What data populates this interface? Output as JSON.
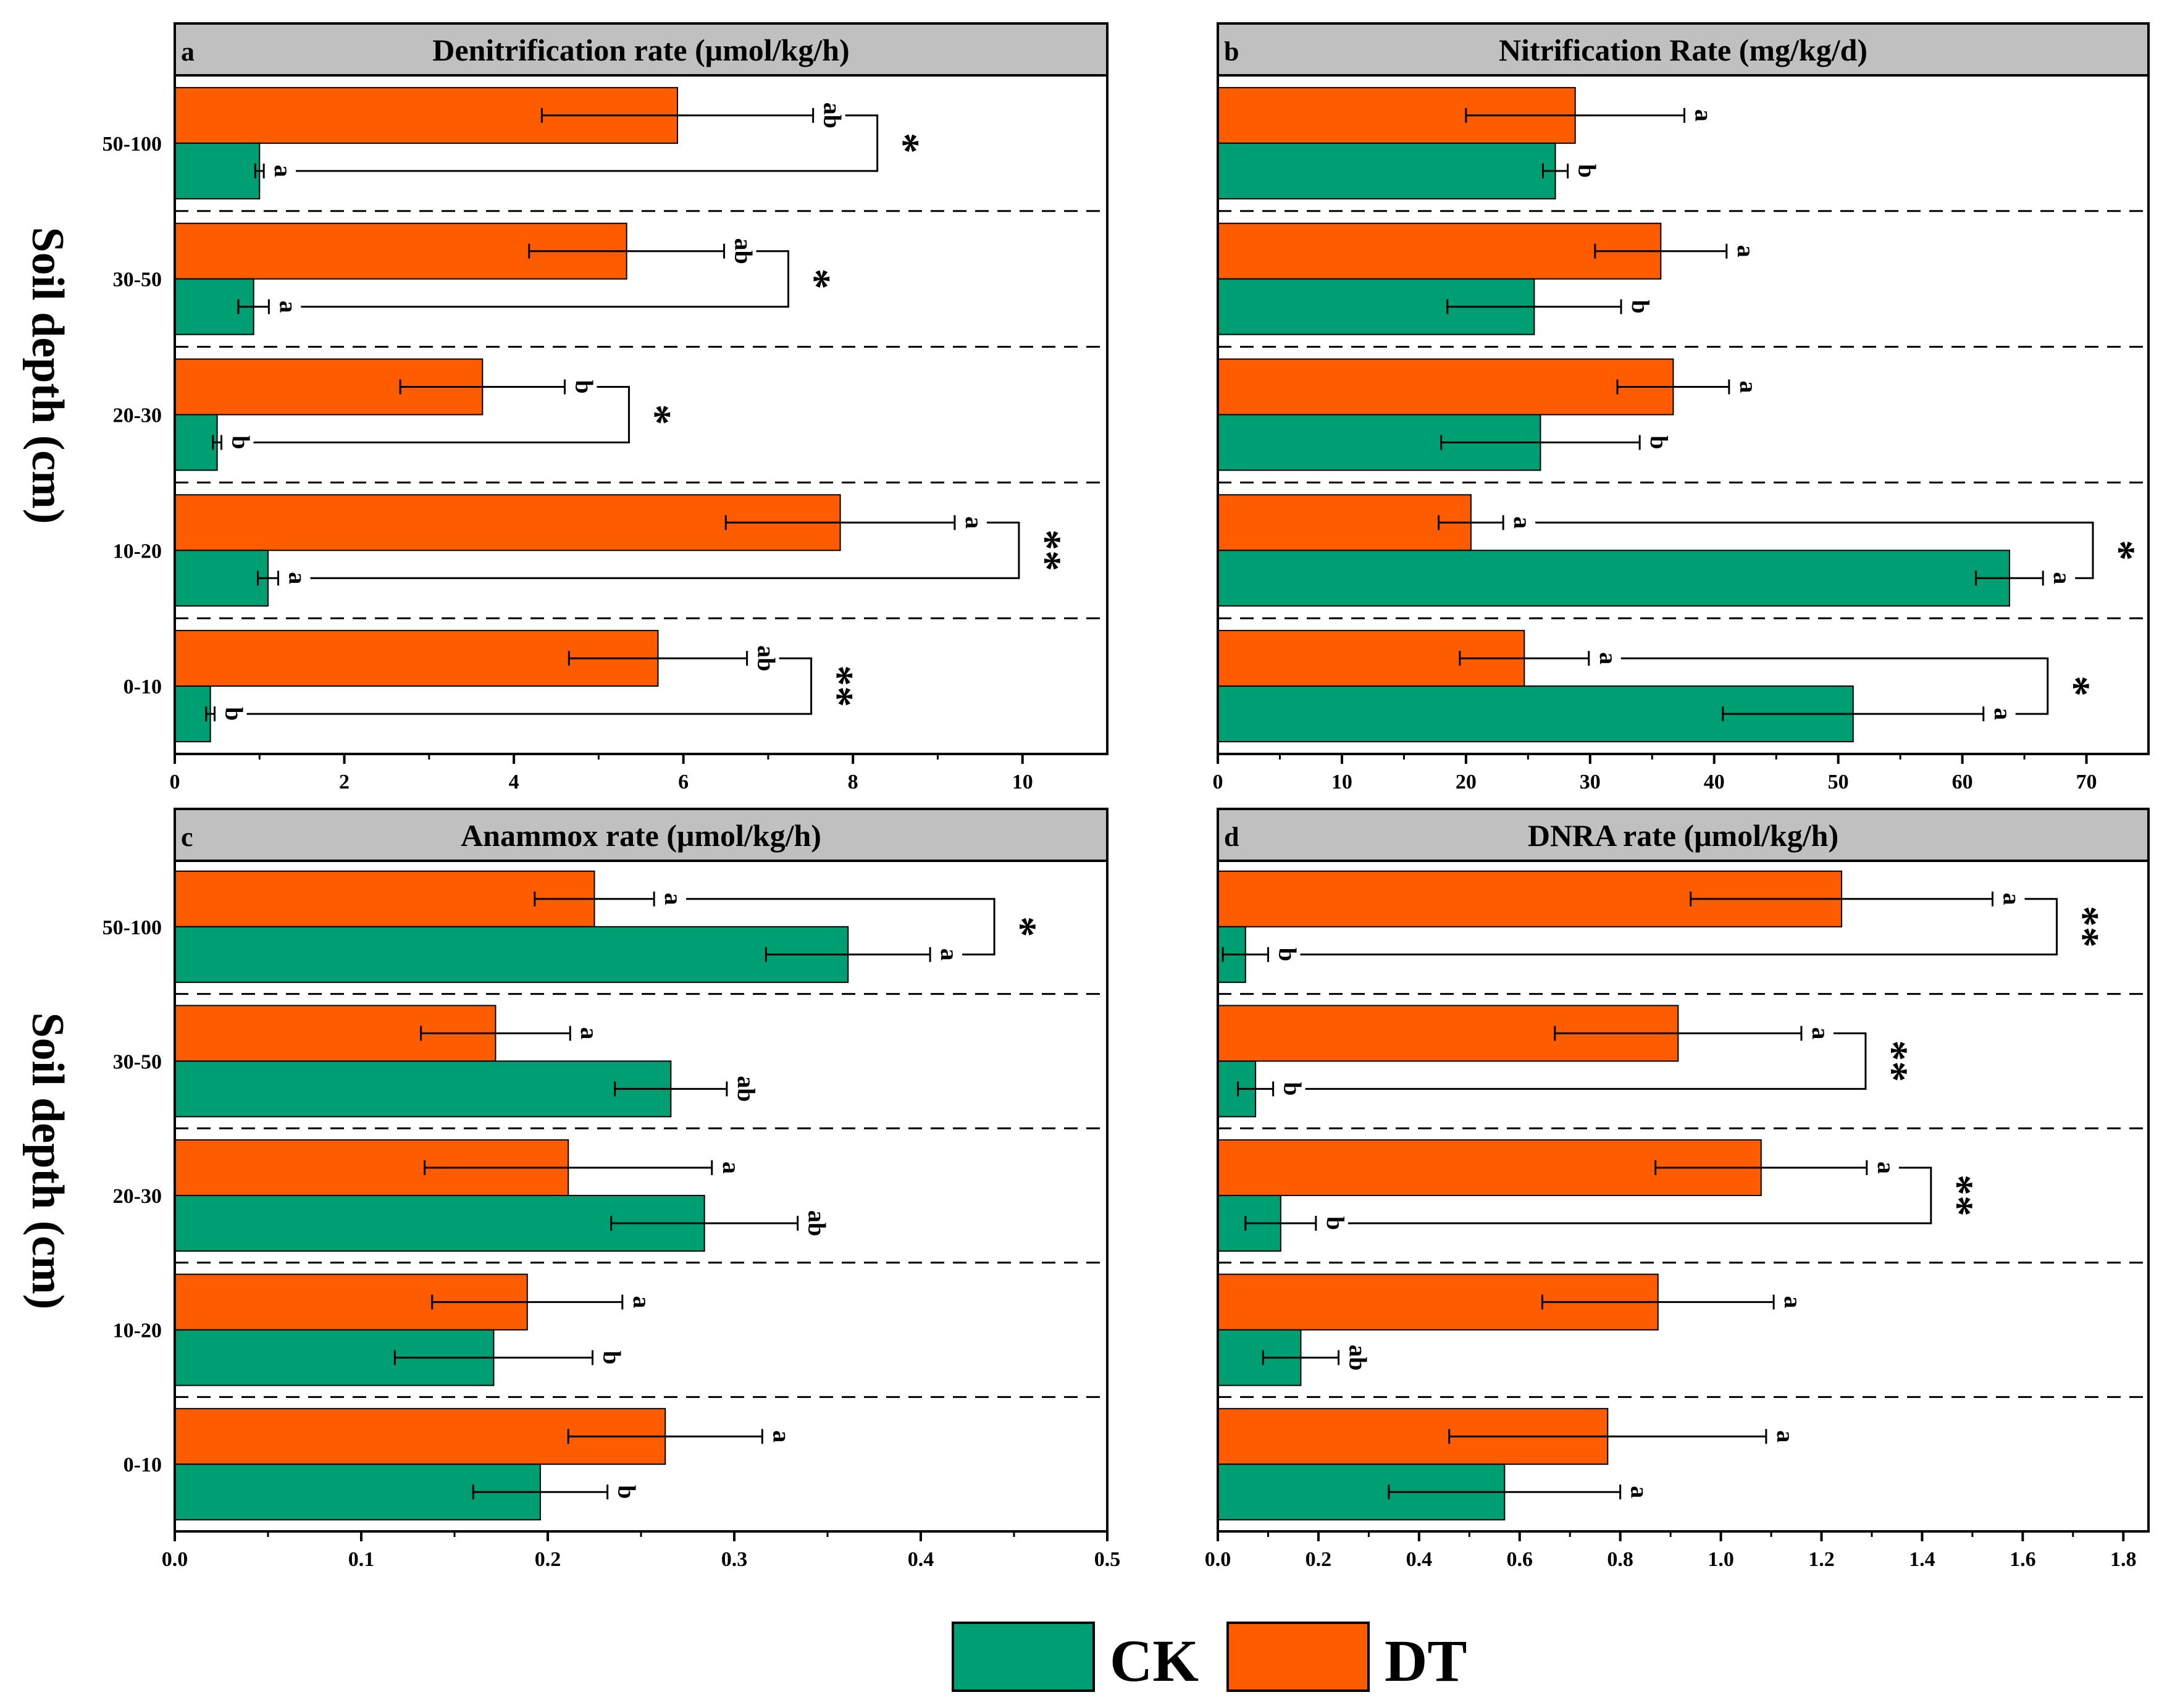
{
  "figure": {
    "y_axis_label": "Soil depth (cm)",
    "legend": [
      {
        "name": "CK",
        "color": "#009e73"
      },
      {
        "name": "DT",
        "color": "#ff5c00"
      }
    ]
  },
  "chart_data": [
    {
      "type": "bar",
      "orientation": "horizontal",
      "panel_label": "a",
      "title": "Denitrification rate  (μmol/kg/h)",
      "categories": [
        "0-10",
        "10-20",
        "20-30",
        "30-50",
        "50-100"
      ],
      "xlim": [
        0,
        11
      ],
      "xticks": [
        0,
        2,
        4,
        6,
        8,
        10
      ],
      "xtick_labels": [
        "0",
        "2",
        "4",
        "6",
        "8",
        "10"
      ],
      "series": [
        {
          "name": "CK",
          "values": [
            0.42,
            1.1,
            0.5,
            0.93,
            1.0
          ],
          "errors": [
            0.05,
            0.12,
            0.05,
            0.18,
            0.05
          ],
          "letters": [
            "b",
            "a",
            "b",
            "a",
            "a"
          ]
        },
        {
          "name": "DT",
          "values": [
            5.7,
            7.85,
            3.63,
            5.33,
            5.93
          ],
          "errors": [
            1.05,
            1.35,
            0.97,
            1.15,
            1.6
          ],
          "letters": [
            "ab",
            "a",
            "b",
            "ab",
            "ab"
          ]
        }
      ],
      "significance": [
        "**",
        "**",
        "*",
        "*",
        "*"
      ]
    },
    {
      "type": "bar",
      "orientation": "horizontal",
      "panel_label": "b",
      "title": "Nitrification Rate  (mg/kg/d)",
      "categories": [
        "0-10",
        "10-20",
        "20-30",
        "30-50",
        "50-100"
      ],
      "xlim": [
        0,
        75
      ],
      "xticks": [
        0,
        10,
        20,
        30,
        40,
        50,
        60,
        70
      ],
      "xtick_labels": [
        "0",
        "10",
        "20",
        "30",
        "40",
        "50",
        "60",
        "70"
      ],
      "series": [
        {
          "name": "CK",
          "values": [
            51.2,
            63.8,
            26.0,
            25.5,
            27.2
          ],
          "errors": [
            10.5,
            2.7,
            8.0,
            7.0,
            1.0
          ],
          "letters": [
            "a",
            "a",
            "b",
            "b",
            "b"
          ]
        },
        {
          "name": "DT",
          "values": [
            24.7,
            20.4,
            36.7,
            35.7,
            28.8
          ],
          "errors": [
            5.2,
            2.6,
            4.5,
            5.3,
            8.8
          ],
          "letters": [
            "a",
            "a",
            "a",
            "a",
            "a"
          ]
        }
      ],
      "significance": [
        "*",
        "*",
        "",
        "",
        ""
      ]
    },
    {
      "type": "bar",
      "orientation": "horizontal",
      "panel_label": "c",
      "title": "Anammox rate  (μmol/kg/h)",
      "categories": [
        "0-10",
        "10-20",
        "20-30",
        "30-50",
        "50-100"
      ],
      "xlim": [
        0,
        0.5
      ],
      "xticks": [
        0,
        0.1,
        0.2,
        0.3,
        0.4,
        0.5
      ],
      "xtick_labels": [
        "0.0",
        "0.1",
        "0.2",
        "0.3",
        "0.4",
        "0.5"
      ],
      "series": [
        {
          "name": "CK",
          "values": [
            0.196,
            0.171,
            0.284,
            0.266,
            0.361
          ],
          "errors": [
            0.036,
            0.053,
            0.05,
            0.03,
            0.044
          ],
          "letters": [
            "b",
            "b",
            "ab",
            "ab",
            "a"
          ]
        },
        {
          "name": "DT",
          "values": [
            0.263,
            0.189,
            0.211,
            0.172,
            0.225
          ],
          "errors": [
            0.052,
            0.051,
            0.077,
            0.04,
            0.032
          ],
          "letters": [
            "a",
            "a",
            "a",
            "a",
            "a"
          ]
        }
      ],
      "significance": [
        "",
        "",
        "",
        "",
        "*"
      ]
    },
    {
      "type": "bar",
      "orientation": "horizontal",
      "panel_label": "d",
      "title": "DNRA rate (μmol/kg/h)",
      "categories": [
        "0-10",
        "10-20",
        "20-30",
        "30-50",
        "50-100"
      ],
      "xlim": [
        0,
        1.85
      ],
      "xticks": [
        0,
        0.2,
        0.4,
        0.6,
        0.8,
        1.0,
        1.2,
        1.4,
        1.6,
        1.8
      ],
      "xtick_labels": [
        "0.0",
        "0.2",
        "0.4",
        "0.6",
        "0.8",
        "1.0",
        "1.2",
        "1.4",
        "1.6",
        "1.8"
      ],
      "series": [
        {
          "name": "CK",
          "values": [
            0.57,
            0.165,
            0.125,
            0.075,
            0.055
          ],
          "errors": [
            0.23,
            0.075,
            0.07,
            0.035,
            0.045
          ],
          "letters": [
            "a",
            "ab",
            "b",
            "b",
            "b"
          ]
        },
        {
          "name": "DT",
          "values": [
            0.775,
            0.875,
            1.08,
            0.915,
            1.24
          ],
          "errors": [
            0.315,
            0.23,
            0.21,
            0.245,
            0.3
          ],
          "letters": [
            "a",
            "a",
            "a",
            "a",
            "a"
          ]
        }
      ],
      "significance": [
        "",
        "",
        "**",
        "**",
        "**"
      ]
    }
  ]
}
